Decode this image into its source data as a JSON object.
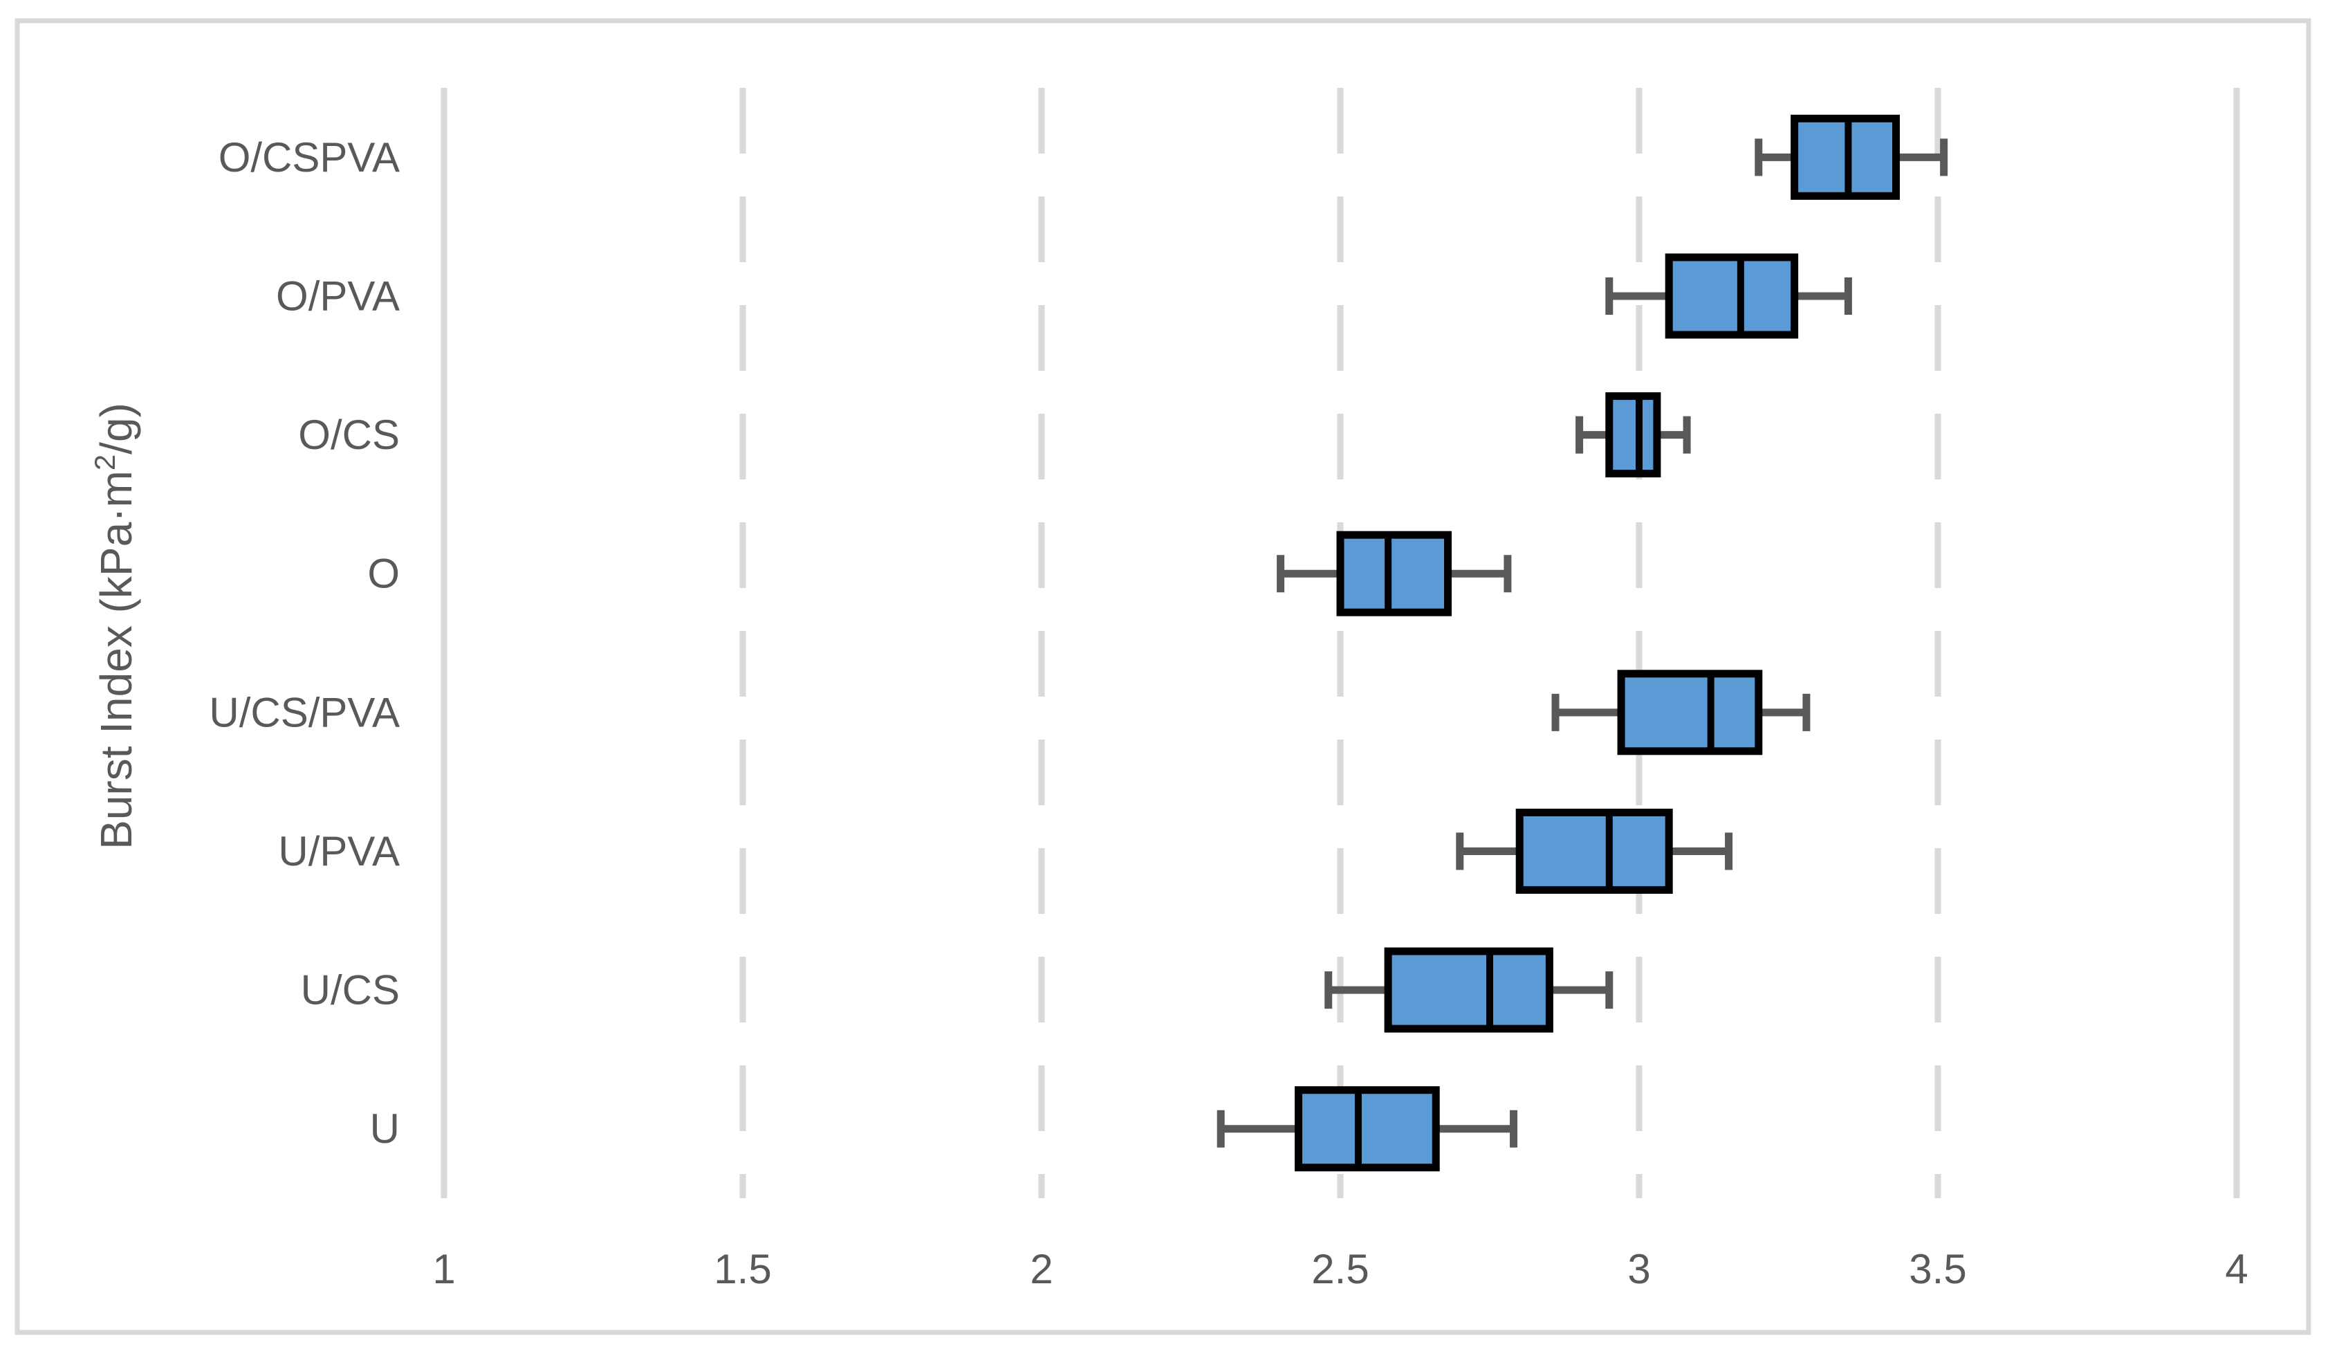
{
  "figure": {
    "background": "#ffffff",
    "border_color": "#d9d9d9"
  },
  "chart_data": {
    "type": "boxplot",
    "orientation": "horizontal",
    "title": "",
    "xlabel": "",
    "ylabel": "Burst Index (kPa·m2/g)",
    "ylabel_parts": {
      "base": "Burst Index (kPa·m",
      "sup": "2",
      "end": "/g)"
    },
    "xlim": [
      1,
      4.1
    ],
    "xticks": [
      1,
      1.5,
      2,
      2.5,
      3,
      3.5,
      4
    ],
    "xtick_labels": [
      "1",
      "1.5",
      "2",
      "2.5",
      "3",
      "3.5",
      "4"
    ],
    "grid": "vertical, light gray, dashed between axis ends",
    "legend": "none",
    "categories_top_to_bottom": [
      "O/CSPVA",
      "O/PVA",
      "O/CS",
      "O",
      "U/CS/PVA",
      "U/PVA",
      "U/CS",
      "U"
    ],
    "series": [
      {
        "category": "O/CSPVA",
        "whisker_low": 3.2,
        "q1": 3.26,
        "median": 3.35,
        "q3": 3.43,
        "whisker_high": 3.51
      },
      {
        "category": "O/PVA",
        "whisker_low": 2.95,
        "q1": 3.05,
        "median": 3.17,
        "q3": 3.26,
        "whisker_high": 3.35
      },
      {
        "category": "O/CS",
        "whisker_low": 2.9,
        "q1": 2.95,
        "median": 3.0,
        "q3": 3.03,
        "whisker_high": 3.08
      },
      {
        "category": "O",
        "whisker_low": 2.4,
        "q1": 2.5,
        "median": 2.58,
        "q3": 2.68,
        "whisker_high": 2.78
      },
      {
        "category": "U/CS/PVA",
        "whisker_low": 2.86,
        "q1": 2.97,
        "median": 3.12,
        "q3": 3.2,
        "whisker_high": 3.28
      },
      {
        "category": "U/PVA",
        "whisker_low": 2.7,
        "q1": 2.8,
        "median": 2.95,
        "q3": 3.05,
        "whisker_high": 3.15
      },
      {
        "category": "U/CS",
        "whisker_low": 2.48,
        "q1": 2.58,
        "median": 2.75,
        "q3": 2.85,
        "whisker_high": 2.95
      },
      {
        "category": "U",
        "whisker_low": 2.3,
        "q1": 2.43,
        "median": 2.53,
        "q3": 2.66,
        "whisker_high": 2.79
      }
    ],
    "colors": {
      "box_fill": "#5b9bd5",
      "box_border": "#000000",
      "median_line": "#000000",
      "whisker": "#595959",
      "gridline": "#d9d9d9",
      "text": "#595959"
    }
  }
}
